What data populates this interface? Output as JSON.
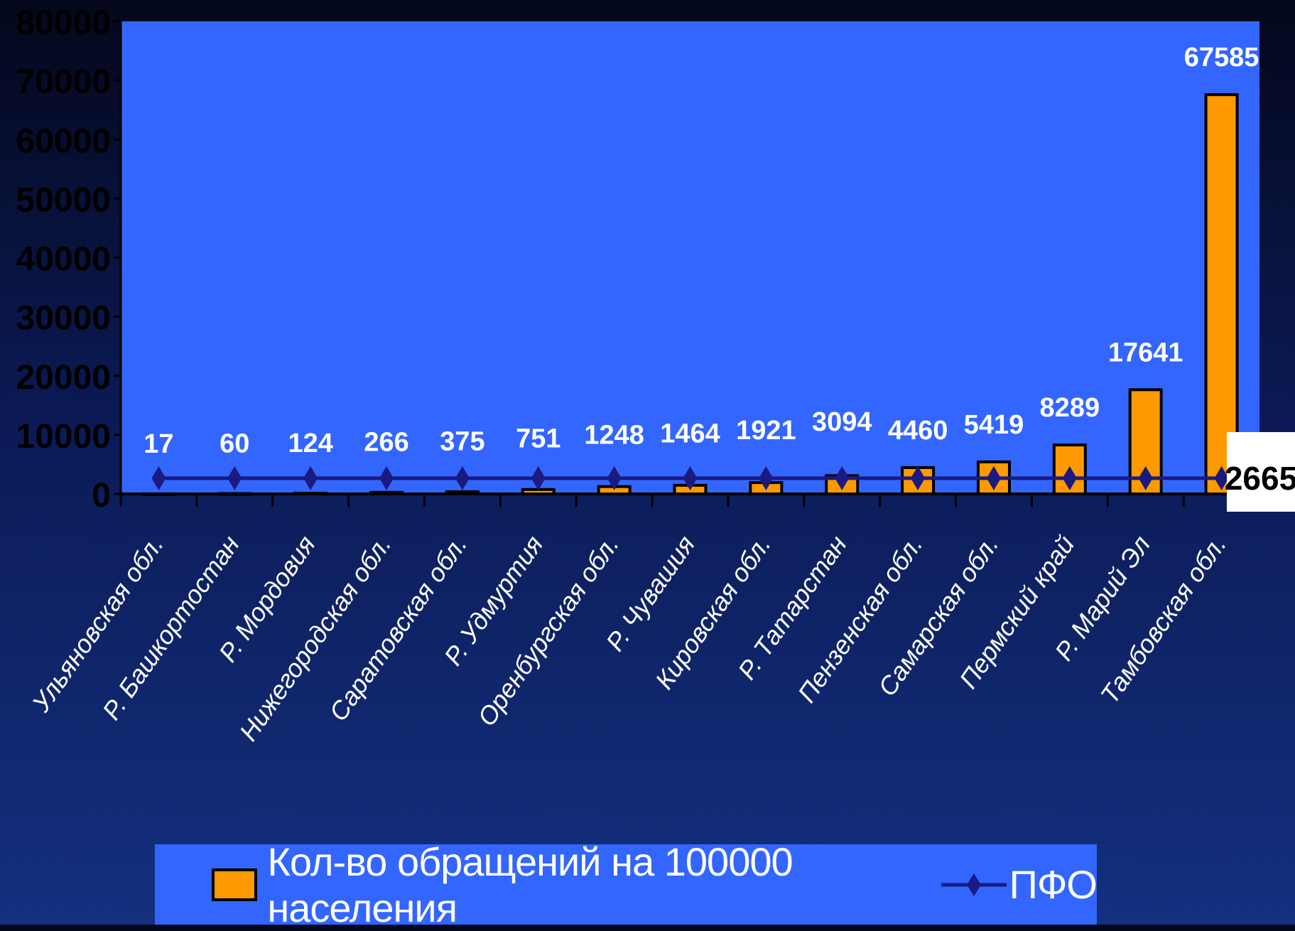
{
  "chart_data": {
    "type": "bar",
    "categories": [
      "Ульяновская обл.",
      "Р. Башкортостан",
      "Р. Мордовия",
      "Нижегородская обл.",
      "Саратовская обл.",
      "Р. Удмуртия",
      "Оренбургская обл.",
      "Р. Чувашия",
      "Кировская обл.",
      "Р. Татарстан",
      "Пензенская обл.",
      "Самарская обл.",
      "Пермский край",
      "Р. Марий Эл",
      "Тамбовская обл."
    ],
    "series": [
      {
        "name": "Кол-во обращений на 100000 населения",
        "type": "bar",
        "values": [
          17,
          60,
          124,
          266,
          375,
          751,
          1248,
          1464,
          1921,
          3094,
          4460,
          5419,
          8289,
          17641,
          67585
        ],
        "color": "#ff9900"
      },
      {
        "name": "ПФО",
        "type": "line",
        "values": [
          2665,
          2665,
          2665,
          2665,
          2665,
          2665,
          2665,
          2665,
          2665,
          2665,
          2665,
          2665,
          2665,
          2665,
          2665
        ],
        "color": "#1a1a80"
      }
    ],
    "data_labels": [
      "17",
      "60",
      "124",
      "266",
      "375",
      "751",
      "1248",
      "1464",
      "1921",
      "3094",
      "4460",
      "5419",
      "8289",
      "17641",
      "67585"
    ],
    "line_end_label": "2665",
    "yticks": [
      "0",
      "10000",
      "20000",
      "30000",
      "40000",
      "50000",
      "60000",
      "70000",
      "80000"
    ],
    "ylim": [
      0,
      80000
    ],
    "plot_background": "#3366ff",
    "grid": false,
    "legend_position": "bottom"
  }
}
